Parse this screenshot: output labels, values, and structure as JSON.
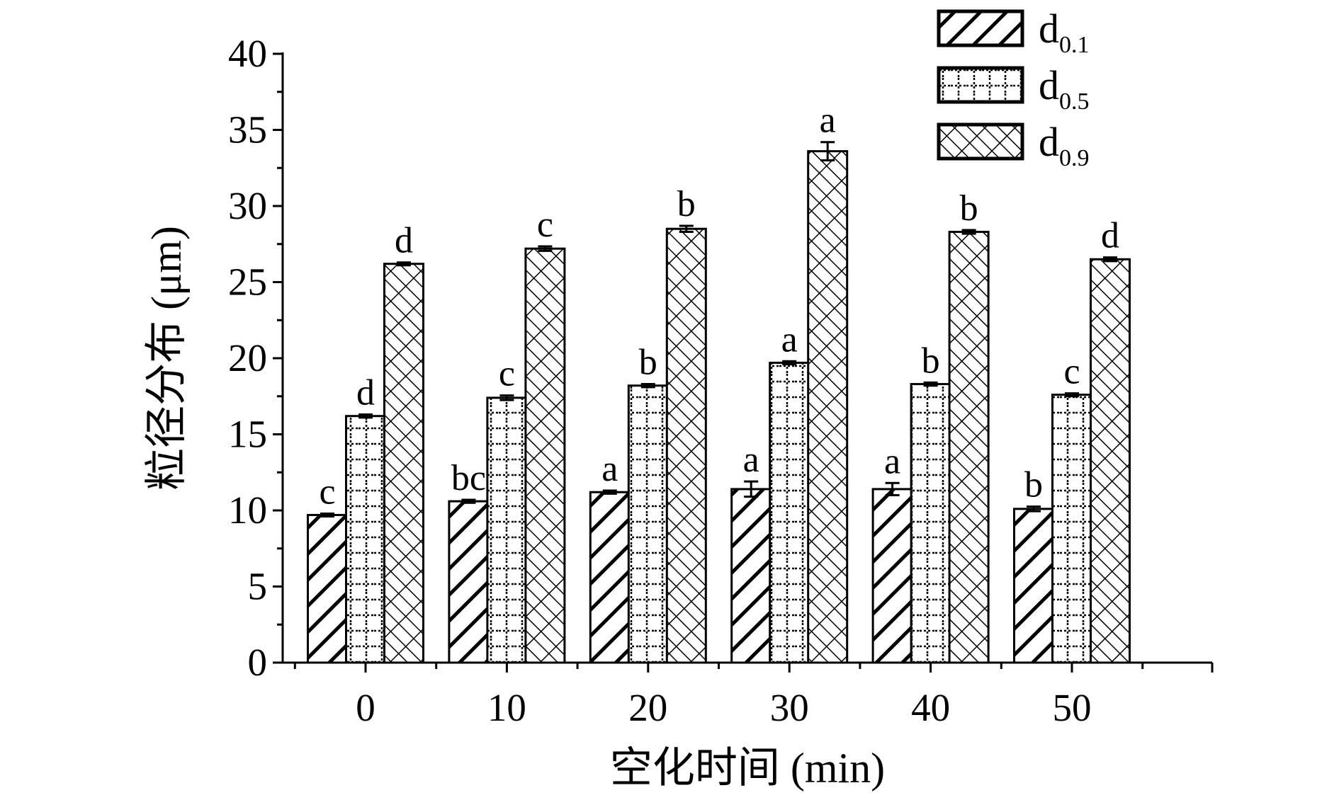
{
  "chart_data": {
    "type": "bar",
    "title": "",
    "xlabel": "空化时间 (min)",
    "ylabel": "粒径分布 (μm)",
    "categories": [
      "0",
      "10",
      "20",
      "30",
      "40",
      "50"
    ],
    "ylim": [
      0,
      40
    ],
    "yticks": [
      "0",
      "5",
      "10",
      "15",
      "20",
      "25",
      "30",
      "35",
      "40"
    ],
    "grid": false,
    "legend_position": "top-right",
    "series": [
      {
        "name": "d",
        "sub": "0.1",
        "pattern": "diagonal-hatch",
        "values": [
          9.7,
          10.6,
          11.2,
          11.4,
          11.4,
          10.1
        ],
        "errors": [
          0.05,
          0.1,
          0.1,
          0.5,
          0.4,
          0.15
        ],
        "letters": [
          "c",
          "bc",
          "a",
          "a",
          "a",
          "b"
        ]
      },
      {
        "name": "d",
        "sub": "0.5",
        "pattern": "dotted-grid",
        "values": [
          16.2,
          17.4,
          18.2,
          19.7,
          18.3,
          17.6
        ],
        "errors": [
          0.1,
          0.15,
          0.1,
          0.1,
          0.1,
          0.08
        ],
        "letters": [
          "d",
          "c",
          "b",
          "a",
          "b",
          "c"
        ]
      },
      {
        "name": "d",
        "sub": "0.9",
        "pattern": "crosshatch",
        "values": [
          26.2,
          27.2,
          28.5,
          33.6,
          28.3,
          26.5
        ],
        "errors": [
          0.08,
          0.15,
          0.2,
          0.6,
          0.12,
          0.12
        ],
        "letters": [
          "d",
          "c",
          "b",
          "a",
          "b",
          "d"
        ]
      }
    ]
  }
}
